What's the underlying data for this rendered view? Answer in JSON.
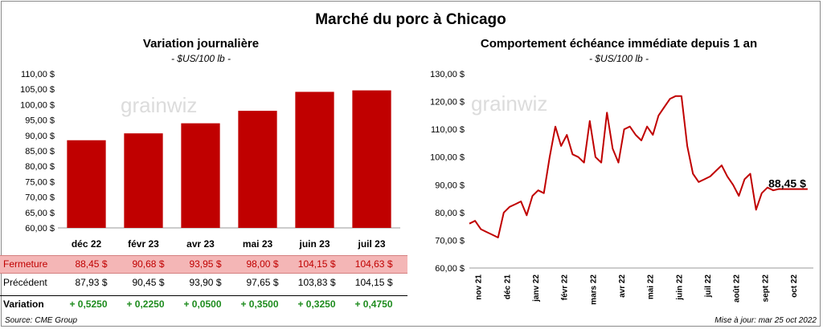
{
  "title": "Marché du porc à Chicago",
  "watermark": "grainwiz",
  "source": "Source: CME Group",
  "updated": "Mise à jour: mar 25 oct 2022",
  "colors": {
    "bar": "#c00000",
    "line": "#c00000",
    "positive": "#1e8c1e",
    "close_row_bg": "#f4b6b6"
  },
  "table": {
    "close_label": "Fermeture",
    "prev_label": "Précédent",
    "var_label": "Variation",
    "close": [
      "88,45  $",
      "90,68  $",
      "93,95  $",
      "98,00  $",
      "104,15  $",
      "104,63  $"
    ],
    "prev": [
      "87,93  $",
      "90,45  $",
      "93,90  $",
      "97,65  $",
      "103,83  $",
      "104,15  $"
    ],
    "variation": [
      "+ 0,5250",
      "+ 0,2250",
      "+ 0,0500",
      "+ 0,3500",
      "+ 0,3250",
      "+ 0,4750"
    ]
  },
  "chart_data": [
    {
      "type": "bar",
      "title": "Variation  journalière",
      "subtitle": "- $US/100 lb -",
      "categories": [
        "déc 22",
        "févr 23",
        "avr 23",
        "mai 23",
        "juin 23",
        "juil 23"
      ],
      "values": [
        88.45,
        90.68,
        93.95,
        98.0,
        104.15,
        104.63
      ],
      "ylim": [
        60,
        110
      ],
      "yticks": [
        "60,00 $",
        "65,00 $",
        "70,00 $",
        "75,00 $",
        "80,00 $",
        "85,00 $",
        "90,00 $",
        "95,00 $",
        "100,00 $",
        "105,00 $",
        "110,00 $"
      ],
      "grid": false
    },
    {
      "type": "line",
      "title": "Comportement  échéance immédiate depuis 1 an",
      "subtitle": "- $US/100 lb -",
      "ylim": [
        60,
        130
      ],
      "yticks": [
        "60,00 $",
        "70,00 $",
        "80,00 $",
        "90,00 $",
        "100,00 $",
        "110,00 $",
        "120,00 $",
        "130,00 $"
      ],
      "xticks": [
        "nov 21",
        "déc 21",
        "janv 22",
        "févr 22",
        "mars 22",
        "avr 22",
        "mai 22",
        "juin 22",
        "juil 22",
        "août 22",
        "sept 22",
        "oct 22"
      ],
      "last_label": "88,45 $",
      "series": [
        {
          "x": [
            0,
            0.2,
            0.4,
            0.6,
            0.8,
            1.0,
            1.2,
            1.4,
            1.6,
            1.8,
            2.0,
            2.2,
            2.4,
            2.6,
            2.8,
            3.0,
            3.2,
            3.4,
            3.6,
            3.8,
            4.0,
            4.2,
            4.4,
            4.6,
            4.8,
            5.0,
            5.2,
            5.4,
            5.6,
            5.8,
            6.0,
            6.2,
            6.4,
            6.6,
            6.8,
            7.0,
            7.2,
            7.4,
            7.6,
            7.8,
            8.0,
            8.2,
            8.4,
            8.6,
            8.8,
            9.0,
            9.2,
            9.4,
            9.6,
            9.8,
            10.0,
            10.2,
            10.4,
            10.6,
            10.8,
            11.0,
            11.2,
            11.4,
            11.6,
            11.8
          ],
          "values": [
            76,
            77,
            74,
            73,
            72,
            71,
            80,
            82,
            83,
            84,
            79,
            86,
            88,
            87,
            100,
            111,
            104,
            108,
            101,
            100,
            98,
            113,
            100,
            98,
            116,
            103,
            98,
            110,
            111,
            108,
            106,
            111,
            108,
            115,
            118,
            121,
            122,
            122,
            104,
            94,
            91,
            92,
            93,
            95,
            97,
            93,
            90,
            86,
            92,
            94,
            81,
            87,
            89,
            88,
            88.5,
            88.45,
            88.45,
            88.45,
            88.45,
            88.45
          ]
        }
      ]
    }
  ]
}
